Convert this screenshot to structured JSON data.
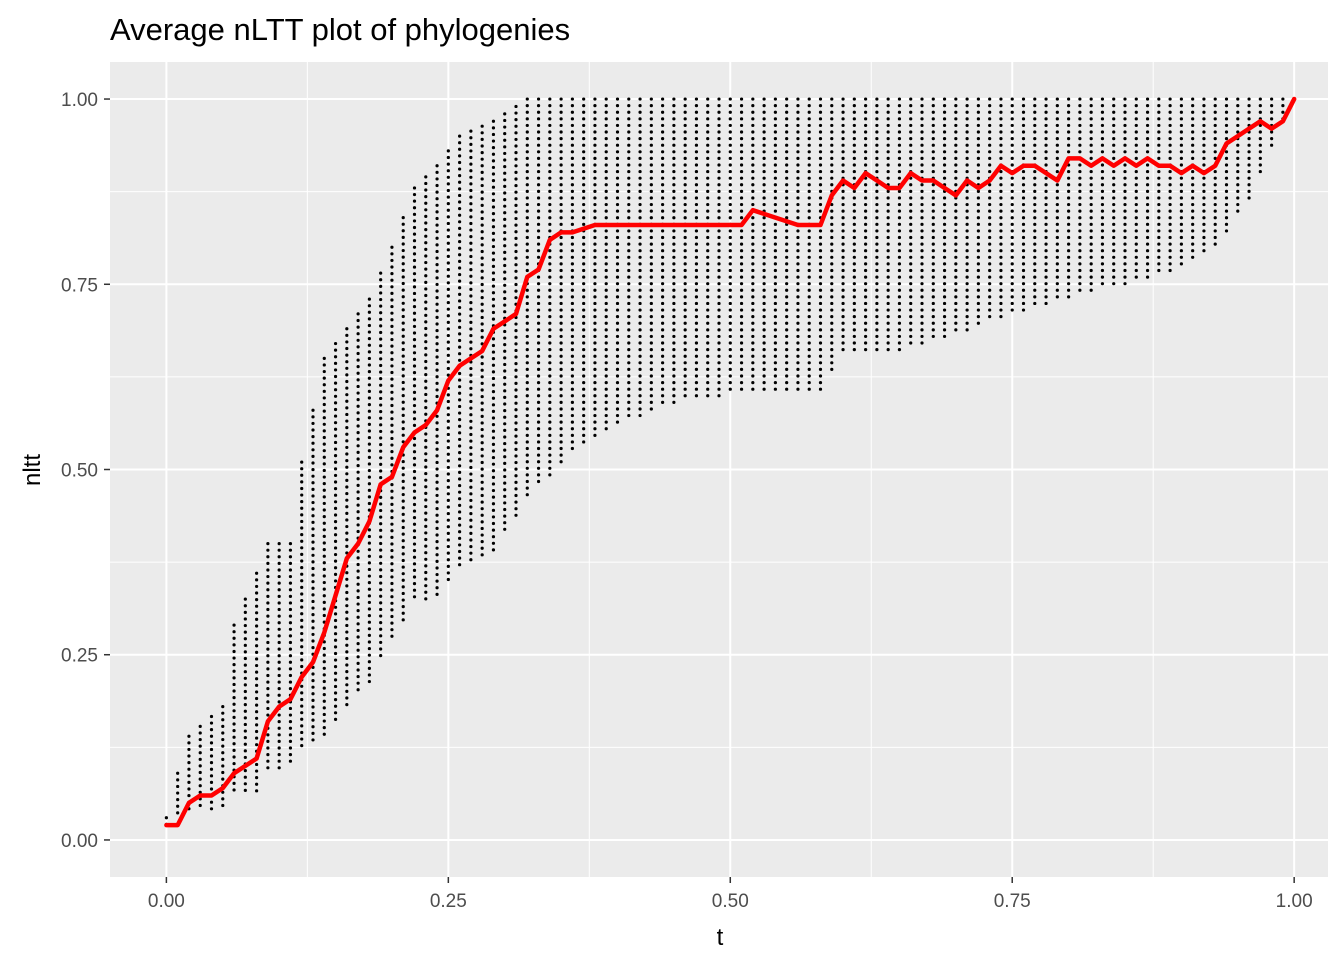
{
  "chart_data": {
    "type": "scatter",
    "title": "Average nLTT plot of phylogenies",
    "xlabel": "t",
    "ylabel": "nltt",
    "xlim": [
      -0.05,
      1.03
    ],
    "ylim": [
      -0.05,
      1.05
    ],
    "x_ticks": [
      0,
      0.25,
      0.5,
      0.75,
      1
    ],
    "x_tick_labels": [
      "0.00",
      "0.25",
      "0.50",
      "0.75",
      "1.00"
    ],
    "y_ticks": [
      0,
      0.25,
      0.5,
      0.75,
      1
    ],
    "y_tick_labels": [
      "0.00",
      "0.25",
      "0.50",
      "0.75",
      "1.00"
    ],
    "grid": true,
    "legend": "none",
    "colors": {
      "panel_background": "#ebebeb",
      "grid": "#ffffff",
      "points": "#000000",
      "average_line": "#ff0000",
      "tick_text": "#4d4d4d",
      "tick_marks": "#333333"
    },
    "series": [
      {
        "kind": "points",
        "x_step": 0.01,
        "y_spacing": 0.0089,
        "envelope": [
          {
            "x": 0.0,
            "low": 0.02,
            "high": 0.03
          },
          {
            "x": 0.01,
            "low": 0.03,
            "high": 0.09
          },
          {
            "x": 0.02,
            "low": 0.04,
            "high": 0.14
          },
          {
            "x": 0.05,
            "low": 0.04,
            "high": 0.18
          },
          {
            "x": 0.06,
            "low": 0.06,
            "high": 0.29
          },
          {
            "x": 0.08,
            "low": 0.06,
            "high": 0.36
          },
          {
            "x": 0.09,
            "low": 0.09,
            "high": 0.4
          },
          {
            "x": 0.11,
            "low": 0.1,
            "high": 0.4
          },
          {
            "x": 0.12,
            "low": 0.12,
            "high": 0.51
          },
          {
            "x": 0.14,
            "low": 0.14,
            "high": 0.65
          },
          {
            "x": 0.16,
            "low": 0.18,
            "high": 0.69
          },
          {
            "x": 0.18,
            "low": 0.21,
            "high": 0.73
          },
          {
            "x": 0.2,
            "low": 0.27,
            "high": 0.8
          },
          {
            "x": 0.22,
            "low": 0.32,
            "high": 0.88
          },
          {
            "x": 0.24,
            "low": 0.33,
            "high": 0.91
          },
          {
            "x": 0.26,
            "low": 0.37,
            "high": 0.95
          },
          {
            "x": 0.29,
            "low": 0.39,
            "high": 0.97
          },
          {
            "x": 0.32,
            "low": 0.46,
            "high": 1.0
          },
          {
            "x": 0.36,
            "low": 0.52,
            "high": 1.0
          },
          {
            "x": 0.4,
            "low": 0.56,
            "high": 1.0
          },
          {
            "x": 0.45,
            "low": 0.59,
            "high": 1.0
          },
          {
            "x": 0.5,
            "low": 0.6,
            "high": 1.0
          },
          {
            "x": 0.55,
            "low": 0.6,
            "high": 1.0
          },
          {
            "x": 0.58,
            "low": 0.6,
            "high": 1.0
          },
          {
            "x": 0.6,
            "low": 0.66,
            "high": 1.0
          },
          {
            "x": 0.65,
            "low": 0.66,
            "high": 1.0
          },
          {
            "x": 0.7,
            "low": 0.68,
            "high": 1.0
          },
          {
            "x": 0.75,
            "low": 0.71,
            "high": 1.0
          },
          {
            "x": 0.8,
            "low": 0.73,
            "high": 1.0
          },
          {
            "x": 0.85,
            "low": 0.75,
            "high": 1.0
          },
          {
            "x": 0.9,
            "low": 0.77,
            "high": 1.0
          },
          {
            "x": 0.93,
            "low": 0.8,
            "high": 1.0
          },
          {
            "x": 0.96,
            "low": 0.86,
            "high": 1.0
          },
          {
            "x": 1.0,
            "low": 1.0,
            "high": 1.0
          }
        ]
      },
      {
        "kind": "line",
        "x": [
          0.0,
          0.01,
          0.02,
          0.03,
          0.04,
          0.05,
          0.06,
          0.07,
          0.08,
          0.09,
          0.1,
          0.11,
          0.12,
          0.13,
          0.14,
          0.15,
          0.16,
          0.17,
          0.18,
          0.19,
          0.2,
          0.21,
          0.22,
          0.23,
          0.24,
          0.25,
          0.26,
          0.27,
          0.28,
          0.29,
          0.3,
          0.31,
          0.32,
          0.33,
          0.34,
          0.35,
          0.36,
          0.38,
          0.4,
          0.42,
          0.44,
          0.46,
          0.48,
          0.5,
          0.51,
          0.52,
          0.54,
          0.56,
          0.58,
          0.59,
          0.6,
          0.61,
          0.62,
          0.63,
          0.64,
          0.65,
          0.66,
          0.67,
          0.68,
          0.69,
          0.7,
          0.71,
          0.72,
          0.73,
          0.74,
          0.75,
          0.76,
          0.77,
          0.78,
          0.79,
          0.8,
          0.81,
          0.82,
          0.83,
          0.84,
          0.85,
          0.86,
          0.87,
          0.88,
          0.89,
          0.9,
          0.91,
          0.92,
          0.93,
          0.94,
          0.95,
          0.96,
          0.97,
          0.98,
          0.99,
          1.0
        ],
        "y": [
          0.02,
          0.02,
          0.05,
          0.06,
          0.06,
          0.07,
          0.09,
          0.1,
          0.11,
          0.16,
          0.18,
          0.19,
          0.22,
          0.24,
          0.28,
          0.33,
          0.38,
          0.4,
          0.43,
          0.48,
          0.49,
          0.53,
          0.55,
          0.56,
          0.58,
          0.62,
          0.64,
          0.65,
          0.66,
          0.69,
          0.7,
          0.71,
          0.76,
          0.77,
          0.81,
          0.82,
          0.82,
          0.83,
          0.83,
          0.83,
          0.83,
          0.83,
          0.83,
          0.83,
          0.83,
          0.85,
          0.84,
          0.83,
          0.83,
          0.87,
          0.89,
          0.88,
          0.9,
          0.89,
          0.88,
          0.88,
          0.9,
          0.89,
          0.89,
          0.88,
          0.87,
          0.89,
          0.88,
          0.89,
          0.91,
          0.9,
          0.91,
          0.91,
          0.9,
          0.89,
          0.92,
          0.92,
          0.91,
          0.92,
          0.91,
          0.92,
          0.91,
          0.92,
          0.91,
          0.91,
          0.9,
          0.91,
          0.9,
          0.91,
          0.94,
          0.95,
          0.96,
          0.97,
          0.96,
          0.97,
          1.0
        ]
      }
    ]
  }
}
